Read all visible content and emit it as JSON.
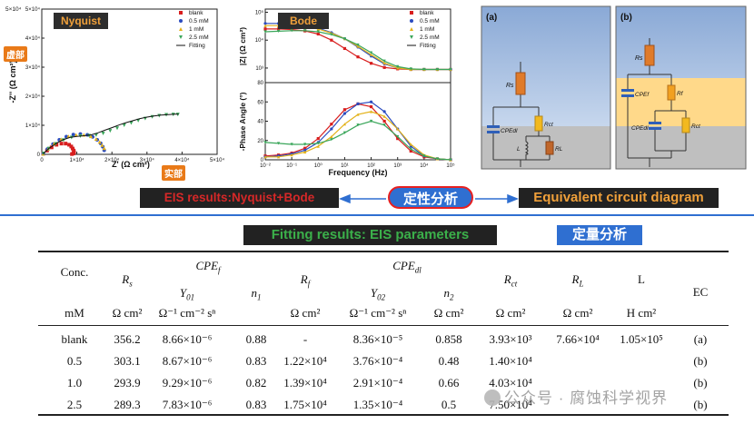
{
  "chart_data": [
    {
      "type": "scatter",
      "panel": "Nyquist",
      "title": "Nyquist",
      "xlabel": "Z' (Ω cm²)",
      "ylabel": "-Z'' (Ω cm²)",
      "xlim": [
        0,
        50000
      ],
      "ylim": [
        0,
        50000
      ],
      "x_ticks": [
        {
          "v": 0,
          "label": "0"
        },
        {
          "v": 10000,
          "label": "1×10⁴"
        },
        {
          "v": 20000,
          "label": "2×10⁴"
        },
        {
          "v": 30000,
          "label": "3×10⁴"
        },
        {
          "v": 40000,
          "label": "4×10⁴"
        },
        {
          "v": 50000,
          "label": "5×10⁴"
        }
      ],
      "y_ticks": [
        {
          "v": 0,
          "label": "0"
        },
        {
          "v": 10000,
          "label": "1×10⁴"
        },
        {
          "v": 20000,
          "label": "2×10⁴"
        },
        {
          "v": 30000,
          "label": "3×10⁴"
        },
        {
          "v": 40000,
          "label": "4×10⁴"
        },
        {
          "v": 50000,
          "label": "5×10⁴"
        }
      ],
      "legend_position": "top-right",
      "series": [
        {
          "name": "blank",
          "color": "#d81e1e",
          "marker": "square",
          "x": [
            400,
            1500,
            2800,
            4200,
            5600,
            6800,
            7800,
            8400,
            8800,
            9100,
            9200,
            9000,
            8600
          ],
          "y": [
            200,
            1300,
            2400,
            3300,
            3700,
            3700,
            3300,
            2700,
            2000,
            1300,
            700,
            300,
            100
          ]
        },
        {
          "name": "0.5 mM",
          "color": "#2a4bbf",
          "marker": "circle",
          "x": [
            400,
            1600,
            3200,
            5000,
            7000,
            9000,
            11000,
            13000,
            14500,
            15800,
            16800,
            17400,
            17800
          ],
          "y": [
            200,
            1800,
            3500,
            5000,
            6100,
            6800,
            7000,
            6700,
            6000,
            5000,
            3800,
            2600,
            1400
          ]
        },
        {
          "name": "1 mM",
          "color": "#e3b21a",
          "marker": "triangle-up",
          "x": [
            400,
            1800,
            3500,
            5500,
            7600,
            9800,
            12000,
            14000,
            15500,
            16500,
            17200,
            17800
          ],
          "y": [
            200,
            1900,
            3700,
            5200,
            6200,
            6700,
            6700,
            6200,
            5300,
            4300,
            3200,
            2100
          ]
        },
        {
          "name": "2.5 mM",
          "color": "#3aa65a",
          "marker": "triangle-down",
          "x": [
            500,
            2000,
            4000,
            6200,
            8500,
            11000,
            13500,
            15500,
            17500,
            19500,
            21500,
            23500,
            25500,
            27500,
            29500,
            31500,
            33500,
            35500,
            37500,
            38800
          ],
          "y": [
            300,
            2000,
            3600,
            4900,
            5800,
            6300,
            6400,
            6600,
            7200,
            8100,
            9000,
            10000,
            10800,
            11600,
            12300,
            12900,
            13300,
            13600,
            13700,
            13700
          ]
        },
        {
          "name": "Fitting",
          "color": "#111111",
          "marker": "line",
          "x": [
            400,
            2000,
            4000,
            6000,
            8000,
            10000,
            12000,
            14000,
            16000,
            18000,
            20000,
            22000,
            24000,
            26000,
            28000,
            30000,
            32000,
            34000,
            36000,
            38000,
            39000
          ],
          "y": [
            200,
            2000,
            3700,
            5000,
            5800,
            6200,
            6400,
            6700,
            7400,
            8300,
            9200,
            10100,
            10900,
            11600,
            12300,
            12800,
            13200,
            13500,
            13700,
            13800,
            13800
          ]
        }
      ]
    },
    {
      "type": "line",
      "panel": "Bode",
      "title": "Bode",
      "xlabel": "Frequency (Hz)",
      "x_scale": "log",
      "xlim": [
        0.01,
        100000
      ],
      "x_ticks": [
        "10⁻²",
        "10⁻¹",
        "10⁰",
        "10¹",
        "10²",
        "10³",
        "10⁴",
        "10⁵"
      ],
      "legend_position": "top-right",
      "series_names": [
        "blank",
        "0.5 mM",
        "1 mM",
        "2.5 mM",
        "Fitting"
      ],
      "series_colors": [
        "#d81e1e",
        "#2a4bbf",
        "#e3b21a",
        "#3aa65a",
        "#111111"
      ],
      "top": {
        "ylabel": "|Z| (Ω cm²)",
        "y_scale": "log",
        "ylim": [
          300,
          130000
        ],
        "y_ticks": [
          "10³",
          "10⁴",
          "10⁵"
        ],
        "log10f": [
          -2,
          -1.5,
          -1,
          -0.5,
          0,
          0.5,
          1,
          1.5,
          2,
          2.5,
          3,
          3.5,
          4,
          4.5,
          5
        ],
        "series": [
          [
            4.4,
            4.4,
            4.38,
            4.33,
            4.22,
            4.0,
            3.7,
            3.4,
            3.17,
            3.02,
            2.97,
            2.95,
            2.95,
            2.95,
            2.95
          ],
          [
            4.6,
            4.6,
            4.58,
            4.53,
            4.43,
            4.27,
            4.05,
            3.75,
            3.43,
            3.15,
            3.0,
            2.95,
            2.95,
            2.95,
            2.95
          ],
          [
            4.52,
            4.52,
            4.51,
            4.48,
            4.4,
            4.25,
            4.05,
            3.78,
            3.48,
            3.18,
            3.0,
            2.95,
            2.95,
            2.95,
            2.95
          ],
          [
            4.3,
            4.32,
            4.34,
            4.34,
            4.3,
            4.2,
            4.05,
            3.83,
            3.55,
            3.25,
            3.05,
            2.97,
            2.95,
            2.95,
            2.95
          ]
        ]
      },
      "bottom": {
        "ylabel": "-Phase Angle (°)",
        "ylim": [
          0,
          80
        ],
        "y_ticks": [
          "0",
          "20",
          "40",
          "60",
          "80"
        ],
        "log10f": [
          -2,
          -1.5,
          -1,
          -0.5,
          0,
          0.5,
          1,
          1.5,
          2,
          2.5,
          3,
          3.5,
          4,
          4.5,
          5
        ],
        "series": [
          [
            4,
            5,
            7,
            12,
            22,
            37,
            52,
            58,
            55,
            40,
            22,
            9,
            3,
            1,
            0
          ],
          [
            3,
            4,
            6,
            10,
            18,
            32,
            48,
            58,
            60,
            50,
            32,
            14,
            4,
            1,
            0
          ],
          [
            3,
            3,
            5,
            8,
            14,
            24,
            37,
            47,
            50,
            45,
            32,
            16,
            5,
            1,
            0
          ],
          [
            18,
            17,
            16,
            16,
            17,
            21,
            28,
            36,
            40,
            36,
            24,
            11,
            4,
            1,
            0
          ]
        ]
      }
    }
  ],
  "nyquist": {
    "tag": "Nyquist",
    "imag_tag": "虚部",
    "real_tag": "实部",
    "y_exp": "5×10⁴"
  },
  "bode": {
    "tag": "Bode"
  },
  "circuits": {
    "a_label": "(a)",
    "b_label": "(b)",
    "a": {
      "rs": "Rs",
      "cpe": "CPEdl",
      "rct": "Rct",
      "l": "L",
      "rl": "RL"
    },
    "b": {
      "rs": "Rs",
      "cpef": "CPEf",
      "rf": "Rf",
      "cpedl": "CPEdl",
      "rct": "Rct"
    }
  },
  "banners": {
    "eis": "EIS results:Nyquist+Bode",
    "qualitative": "定性分析",
    "circuit": "Equivalent circuit diagram",
    "fitting": "Fitting results: EIS parameters",
    "quantitative": "定量分析"
  },
  "table": {
    "header_row1": {
      "conc": "Conc.",
      "rs": "R",
      "rs_sub": "s",
      "cpef": "CPE",
      "cpef_sub": "f",
      "rf": "R",
      "rf_sub": "f",
      "cpedl": "CPE",
      "cpedl_sub": "dl",
      "rct": "R",
      "rct_sub": "ct",
      "rl": "R",
      "rl_sub": "L",
      "l": "L",
      "ec": "EC"
    },
    "header_row2": {
      "y01": "Y",
      "y01_sub": "01",
      "n1": "n",
      "n1_sub": "1",
      "y02": "Y",
      "y02_sub": "02",
      "n2": "n",
      "n2_sub": "2"
    },
    "units": [
      "mM",
      "Ω cm²",
      "Ω⁻¹ cm⁻² sⁿ",
      "",
      "Ω cm²",
      "Ω⁻¹ cm⁻² sⁿ",
      "Ω cm²",
      "Ω cm²",
      "Ω cm²",
      "H cm²",
      ""
    ],
    "rows": [
      [
        "blank",
        "356.2",
        "8.66×10⁻⁶",
        "0.88",
        "-",
        "8.36×10⁻⁵",
        "0.858",
        "3.93×10³",
        "7.66×10⁴",
        "1.05×10⁵",
        "(a)"
      ],
      [
        "0.5",
        "303.1",
        "8.67×10⁻⁶",
        "0.83",
        "1.22×10⁴",
        "3.76×10⁻⁴",
        "0.48",
        "1.40×10⁴",
        "",
        "",
        "(b)"
      ],
      [
        "1.0",
        "293.9",
        "9.29×10⁻⁶",
        "0.82",
        "1.39×10⁴",
        "2.91×10⁻⁴",
        "0.66",
        "4.03×10⁴",
        "",
        "",
        "(b)"
      ],
      [
        "2.5",
        "289.3",
        "7.83×10⁻⁶",
        "0.83",
        "1.75×10⁴",
        "1.35×10⁻⁴",
        "0.5",
        "7.50×10⁴",
        "",
        "",
        "(b)"
      ]
    ]
  },
  "watermark": "公众号 · 腐蚀科学视界"
}
